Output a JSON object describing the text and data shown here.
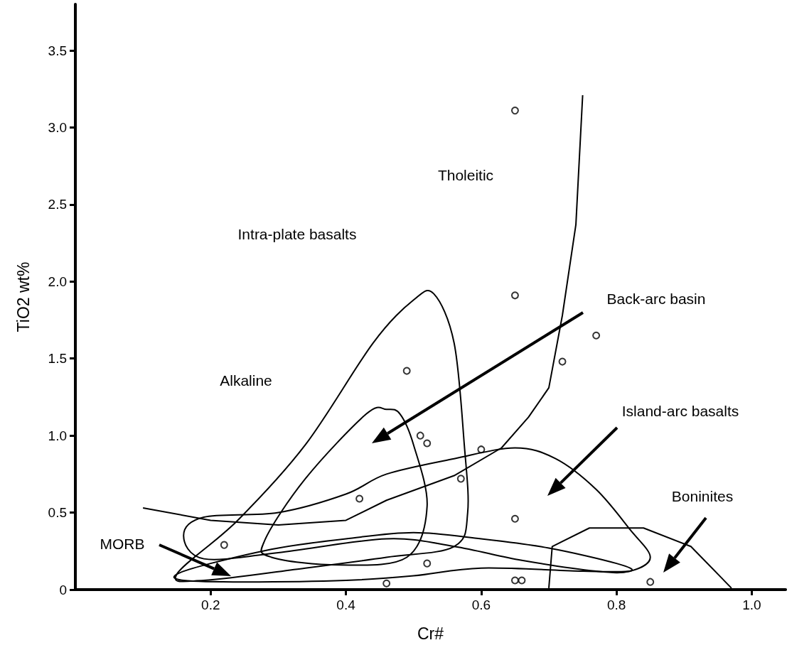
{
  "chart_data": {
    "type": "scatter",
    "xlabel": "Cr#",
    "ylabel": "TiO2 wt%",
    "xlim": [
      0,
      1.05
    ],
    "xticks": [
      0.2,
      0.4,
      0.6,
      0.8,
      {
        "value": 1,
        "label": "1.0"
      }
    ],
    "ylim": [
      0,
      3.8
    ],
    "yticks": [
      0,
      0.5,
      {
        "value": 1,
        "label": "1.0"
      },
      1.5,
      {
        "value": 2,
        "label": "2.0"
      },
      2.5,
      {
        "value": 3,
        "label": "3.0"
      },
      3.5
    ],
    "marker": "circle",
    "series": [
      {
        "color": "#000000",
        "x": [
          0.49,
          0.51,
          0.52,
          0.42,
          0.22,
          0.46,
          0.65,
          0.65,
          0.77,
          0.72,
          0.6,
          0.57,
          0.65,
          0.52,
          0.65,
          0.66,
          0.85
        ],
        "values": [
          1.42,
          1.0,
          0.95,
          0.59,
          0.29,
          0.04,
          3.11,
          1.91,
          1.65,
          1.48,
          0.91,
          0.72,
          0.46,
          0.17,
          0.06,
          0.06,
          0.05
        ]
      },
      {
        "type": "line",
        "color": "#000000",
        "marker": "none",
        "x": [
          0.1,
          0.2,
          0.3,
          0.4,
          0.46,
          0.56,
          0.63,
          0.67,
          0.7,
          0.72,
          0.74,
          0.75
        ],
        "values": [
          0.53,
          0.45,
          0.42,
          0.45,
          0.58,
          0.74,
          0.92,
          1.12,
          1.31,
          1.78,
          2.37,
          3.21
        ]
      },
      {
        "type": "line",
        "color": "#000000",
        "marker": "none",
        "x": [
          0.7,
          0.705,
          0.76,
          0.84,
          0.91,
          0.97
        ],
        "values": [
          0.01,
          0.28,
          0.4,
          0.4,
          0.28,
          0.01
        ]
      }
    ],
    "annotations": [
      "Tholeitic",
      "Intra-plate basalts",
      "Alkaline",
      "Back-arc basin",
      "Island-arc basalts",
      "Boninites",
      "MORB"
    ]
  }
}
